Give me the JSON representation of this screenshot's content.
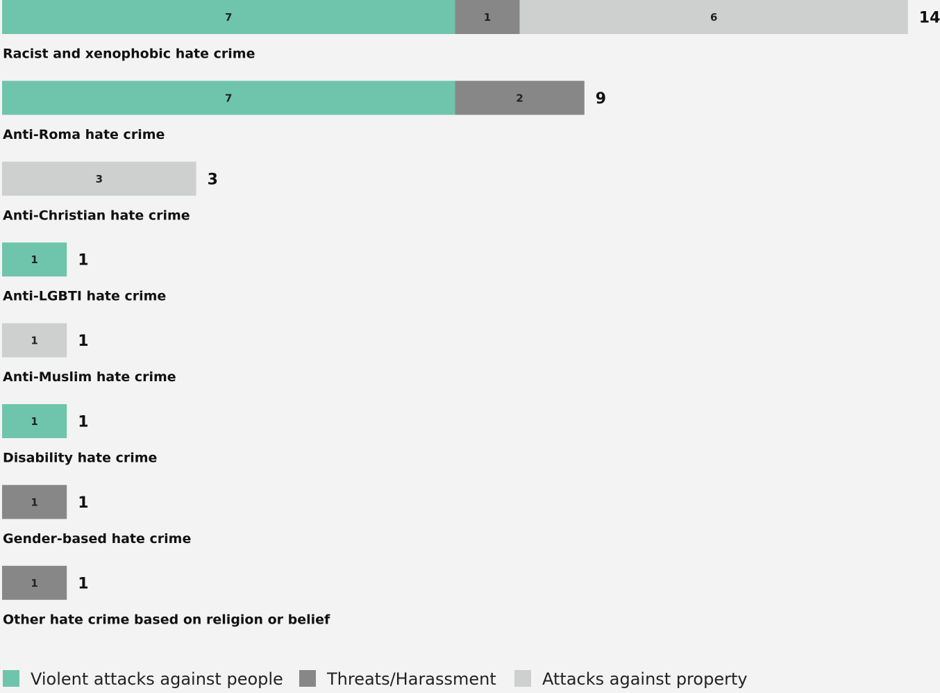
{
  "chart_data": {
    "type": "bar",
    "orientation": "horizontal",
    "stacked": true,
    "title": "",
    "xlabel": "",
    "ylabel": "",
    "grid": false,
    "legend_position": "bottom",
    "xlim": [
      0,
      14
    ],
    "categories": [
      "Racist and xenophobic hate crime",
      "Anti-Roma hate crime",
      "Anti-Christian hate crime",
      "Anti-LGBTI hate crime",
      "Anti-Muslim hate crime",
      "Disability hate crime",
      "Gender-based hate crime",
      "Other hate crime based on religion or belief"
    ],
    "totals": [
      14,
      9,
      3,
      1,
      1,
      1,
      1,
      1
    ],
    "series": [
      {
        "name": "Violent attacks against people",
        "color": "#6fc5ab",
        "values": [
          7,
          7,
          0,
          1,
          0,
          1,
          0,
          0
        ]
      },
      {
        "name": "Threats/Harassment",
        "color": "#878787",
        "values": [
          1,
          2,
          0,
          0,
          0,
          0,
          1,
          1
        ]
      },
      {
        "name": "Attacks against property",
        "color": "#cdd0cf",
        "values": [
          6,
          0,
          3,
          0,
          1,
          0,
          0,
          0
        ]
      }
    ]
  }
}
